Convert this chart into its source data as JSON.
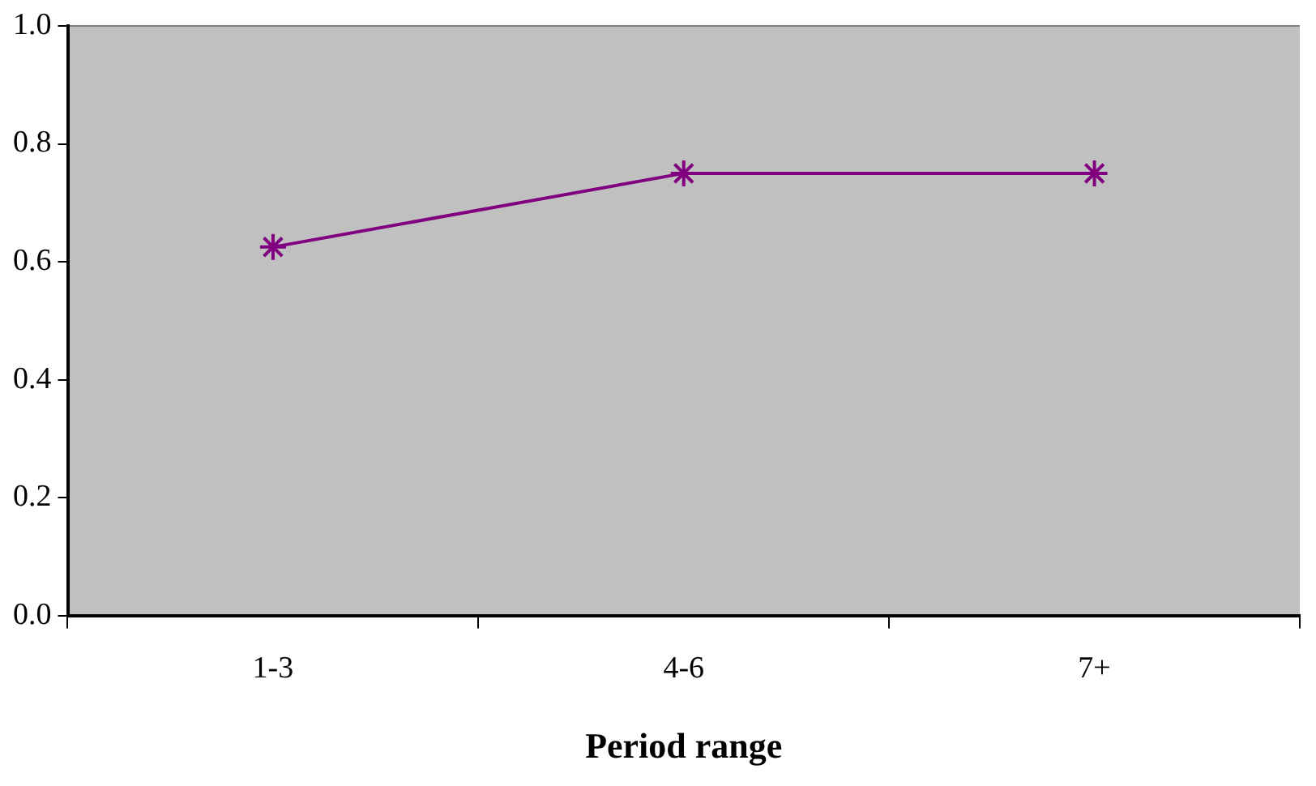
{
  "chart_data": {
    "type": "line",
    "xlabel": "Period range",
    "categories": [
      "1-3",
      "4-6",
      "7+"
    ],
    "series": [
      {
        "color": "#800080",
        "values": [
          0.625,
          0.75,
          0.75
        ]
      }
    ],
    "ylim": [
      0,
      1
    ],
    "yticks": [
      "0.0",
      0.2,
      0.4,
      0.6,
      0.8,
      "1.0"
    ],
    "grid": false,
    "legend": false,
    "marker": "cross",
    "line_style": "solid"
  }
}
